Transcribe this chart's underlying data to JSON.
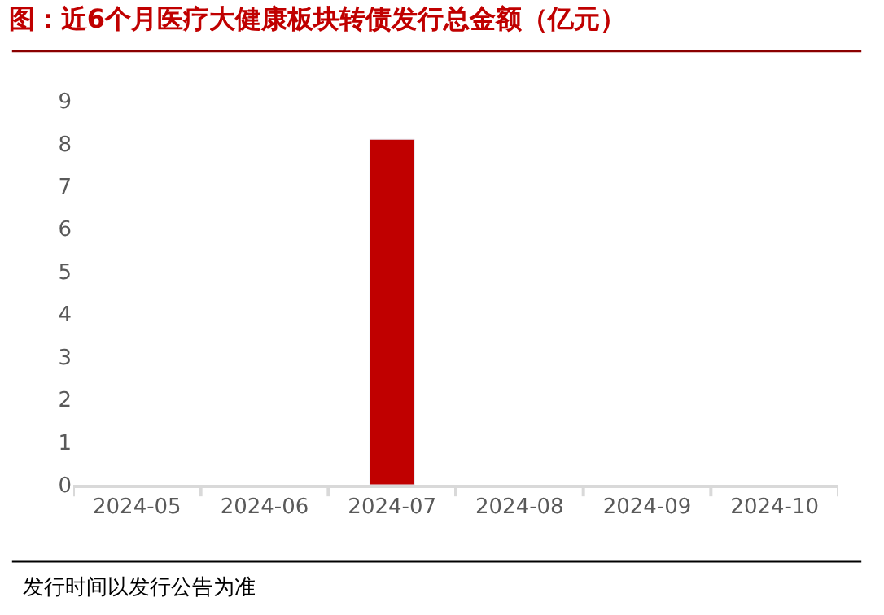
{
  "chart_data": {
    "type": "bar",
    "title": "图：近6个月医疗大健康板块转债发行总金额（亿元）",
    "categories": [
      "2024-05",
      "2024-06",
      "2024-07",
      "2024-08",
      "2024-09",
      "2024-10"
    ],
    "values": [
      null,
      null,
      8.1,
      null,
      null,
      null
    ],
    "color": "#c00000",
    "ylim": [
      0,
      9
    ],
    "yticks": [
      0,
      1,
      2,
      3,
      4,
      5,
      6,
      7,
      8,
      9
    ],
    "annotations": [
      "发行时间以发行公告为准"
    ]
  }
}
